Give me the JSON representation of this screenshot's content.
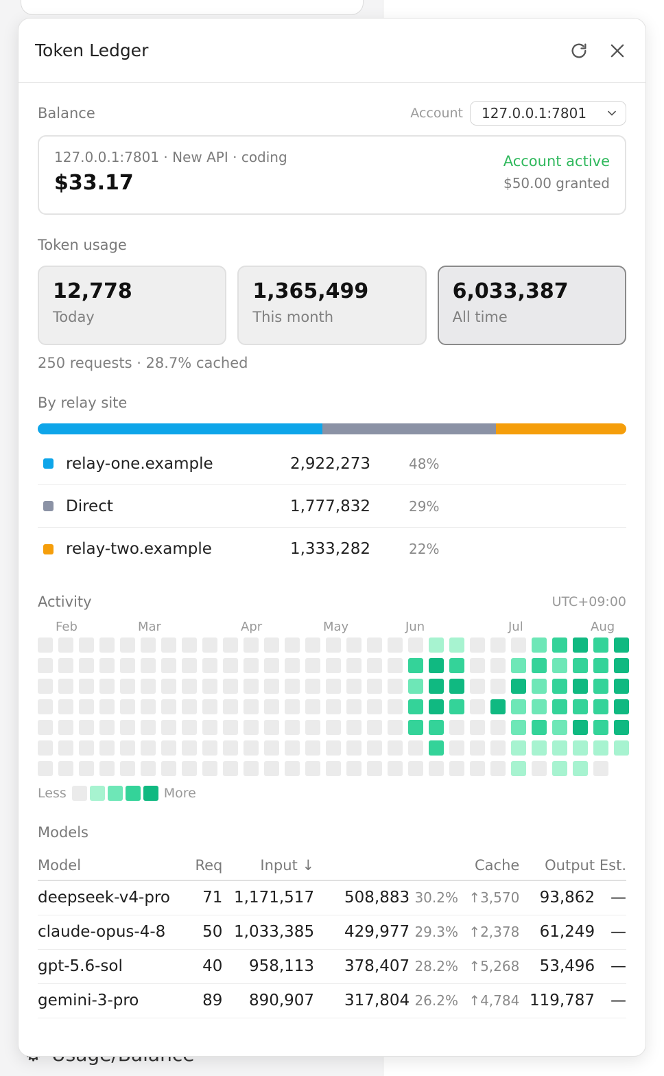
{
  "background": {
    "bottom_item_label": "Usage/Balance"
  },
  "panel": {
    "title": "Token Ledger"
  },
  "balance": {
    "section_label": "Balance",
    "account_label": "Account",
    "account_selected": "127.0.0.1:7801",
    "subtitle": "127.0.0.1:7801 · New API · coding",
    "amount": "$33.17",
    "status": "Account active",
    "granted": "$50.00 granted",
    "status_color": "#2fb85c"
  },
  "usage": {
    "section_label": "Token usage",
    "cards": [
      {
        "value": "12,778",
        "label": "Today",
        "selected": false
      },
      {
        "value": "1,365,499",
        "label": "This month",
        "selected": false
      },
      {
        "value": "6,033,387",
        "label": "All time",
        "selected": true
      }
    ],
    "meta": "250 requests · 28.7% cached"
  },
  "relays": {
    "section_label": "By relay site",
    "items": [
      {
        "name": "relay-one.example",
        "tokens": "2,922,273",
        "pct": "48%",
        "share": 48.4,
        "color": "#0ea5e9"
      },
      {
        "name": "Direct",
        "tokens": "1,777,832",
        "pct": "29%",
        "share": 29.5,
        "color": "#8b92a5"
      },
      {
        "name": "relay-two.example",
        "tokens": "1,333,282",
        "pct": "22%",
        "share": 22.1,
        "color": "#f59e0b"
      }
    ]
  },
  "activity": {
    "section_label": "Activity",
    "timezone": "UTC+09:00",
    "months": [
      {
        "label": "Feb",
        "col": 1
      },
      {
        "label": "Mar",
        "col": 5
      },
      {
        "label": "Apr",
        "col": 10
      },
      {
        "label": "May",
        "col": 14
      },
      {
        "label": "Jun",
        "col": 18
      },
      {
        "label": "Jul",
        "col": 23
      },
      {
        "label": "Aug",
        "col": 27
      }
    ],
    "legend_less": "Less",
    "legend_more": "More",
    "palette": [
      "#ebebeb",
      "#a7f3d0",
      "#6ee7b7",
      "#34d399",
      "#10b981"
    ],
    "grid": [
      "00000000000000000001100023434",
      "00000000000000000034300232334",
      "00000000000000000024400423434",
      "00000000000000000034304223334",
      "00000000000000000033000232434",
      "00000000000000000003000111111",
      "0000000000000000000000010110"
    ]
  },
  "models": {
    "section_label": "Models",
    "columns": {
      "model": "Model",
      "req": "Req",
      "input": "Input ↓",
      "cache": "Cache",
      "output": "Output",
      "est": "Est."
    },
    "rows": [
      {
        "model": "deepseek-v4-pro",
        "req": "71",
        "input": "1,171,517",
        "cache": "508,883",
        "cache_pct": "30.2%",
        "cache_write": "↑3,570",
        "output": "93,862",
        "est": "—"
      },
      {
        "model": "claude-opus-4-8",
        "req": "50",
        "input": "1,033,385",
        "cache": "429,977",
        "cache_pct": "29.3%",
        "cache_write": "↑2,378",
        "output": "61,249",
        "est": "—"
      },
      {
        "model": "gpt-5.6-sol",
        "req": "40",
        "input": "958,113",
        "cache": "378,407",
        "cache_pct": "28.2%",
        "cache_write": "↑5,268",
        "output": "53,496",
        "est": "—"
      },
      {
        "model": "gemini-3-pro",
        "req": "89",
        "input": "890,907",
        "cache": "317,804",
        "cache_pct": "26.2%",
        "cache_write": "↑4,784",
        "output": "119,787",
        "est": "—"
      }
    ]
  }
}
